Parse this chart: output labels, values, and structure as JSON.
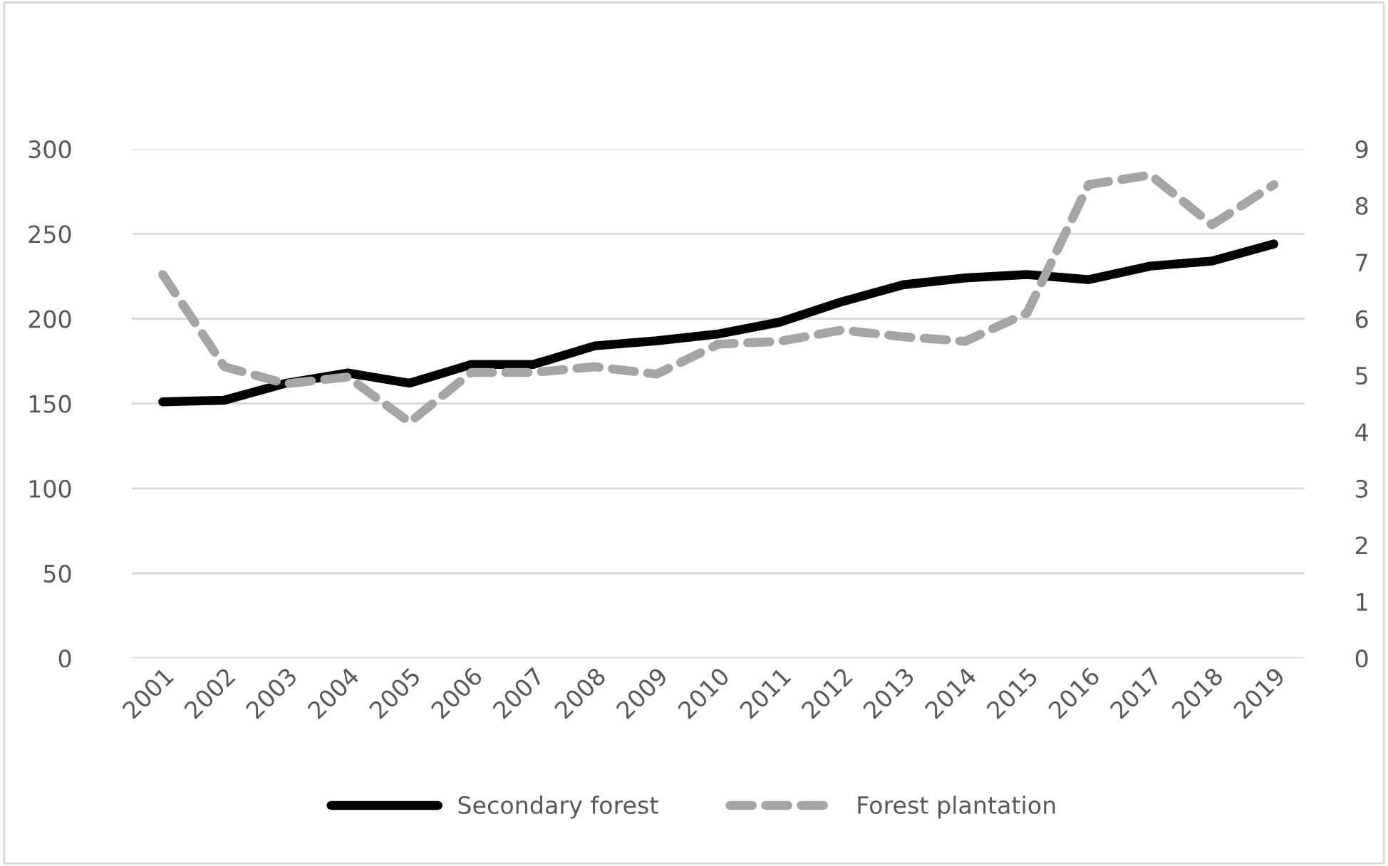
{
  "chart_data": {
    "type": "line",
    "categories": [
      "2001",
      "2002",
      "2003",
      "2004",
      "2005",
      "2006",
      "2007",
      "2008",
      "2009",
      "2010",
      "2011",
      "2012",
      "2013",
      "2014",
      "2015",
      "2016",
      "2017",
      "2018",
      "2019"
    ],
    "series": [
      {
        "name": "Secondary forest",
        "color": "#000000",
        "line_style": "solid",
        "values": [
          151,
          152,
          162,
          168,
          162,
          173,
          173,
          184,
          187,
          191,
          198,
          210,
          220,
          224,
          226,
          223,
          231,
          234,
          244
        ]
      },
      {
        "name": "Forest plantation",
        "color": "#a5a5a5",
        "line_style": "dashed",
        "axis": "y2",
        "values": [
          6.78,
          5.15,
          4.85,
          4.97,
          4.17,
          5.05,
          5.05,
          5.15,
          5.02,
          5.55,
          5.6,
          5.8,
          5.68,
          5.6,
          6.1,
          8.37,
          8.54,
          7.66,
          8.37
        ]
      }
    ],
    "ylim": [
      0,
      300
    ],
    "yticks": [
      0,
      50,
      100,
      150,
      200,
      250,
      300
    ],
    "y2lim": [
      0,
      9
    ],
    "y2ticks": [
      0,
      1,
      2,
      3,
      4,
      5,
      6,
      7,
      8,
      9
    ],
    "grid": "y",
    "legend": "bottom",
    "marker": "none"
  }
}
